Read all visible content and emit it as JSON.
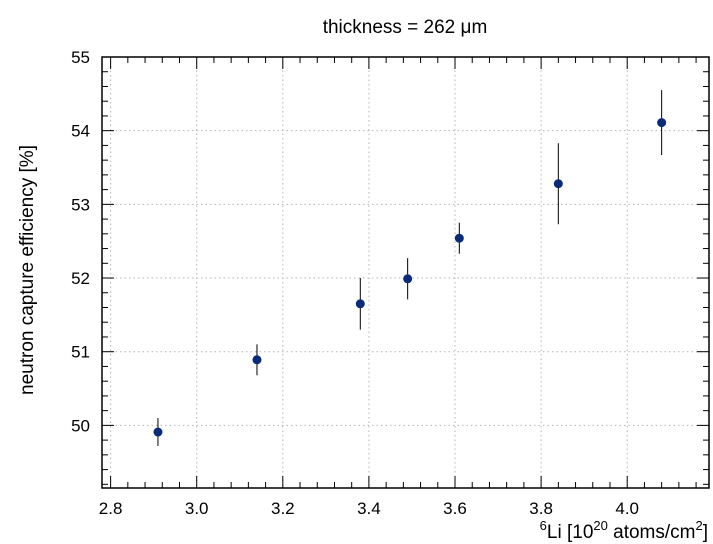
{
  "chart_data": {
    "type": "scatter",
    "title": "thickness = 262 μm",
    "xlabel": {
      "sup_pre": "6",
      "main1": "Li [10",
      "sup_mid": "20",
      "main2": " atoms/cm",
      "sup_end": "2",
      "main3": "]"
    },
    "ylabel": "neutron capture efficiency [%]",
    "xlim": [
      2.78,
      4.19
    ],
    "ylim": [
      49.15,
      55.0
    ],
    "x_ticks": [
      2.8,
      3.0,
      3.2,
      3.4,
      3.6,
      3.8,
      4.0
    ],
    "x_tick_labels": [
      "2.8",
      "3.0",
      "3.2",
      "3.4",
      "3.6",
      "3.8",
      "4.0"
    ],
    "y_ticks": [
      50,
      51,
      52,
      53,
      54,
      55
    ],
    "y_tick_labels": [
      "50",
      "51",
      "52",
      "53",
      "54",
      "55"
    ],
    "grid": true,
    "marker_color": "#0a2a7a",
    "points": [
      {
        "x": 2.91,
        "y": 49.91,
        "yerr": 0.19
      },
      {
        "x": 3.14,
        "y": 50.89,
        "yerr": 0.21
      },
      {
        "x": 3.38,
        "y": 51.65,
        "yerr": 0.35
      },
      {
        "x": 3.49,
        "y": 51.99,
        "yerr": 0.28
      },
      {
        "x": 3.61,
        "y": 52.54,
        "yerr": 0.21
      },
      {
        "x": 3.84,
        "y": 53.28,
        "yerr": 0.55
      },
      {
        "x": 4.08,
        "y": 54.11,
        "yerr": 0.44
      }
    ]
  }
}
